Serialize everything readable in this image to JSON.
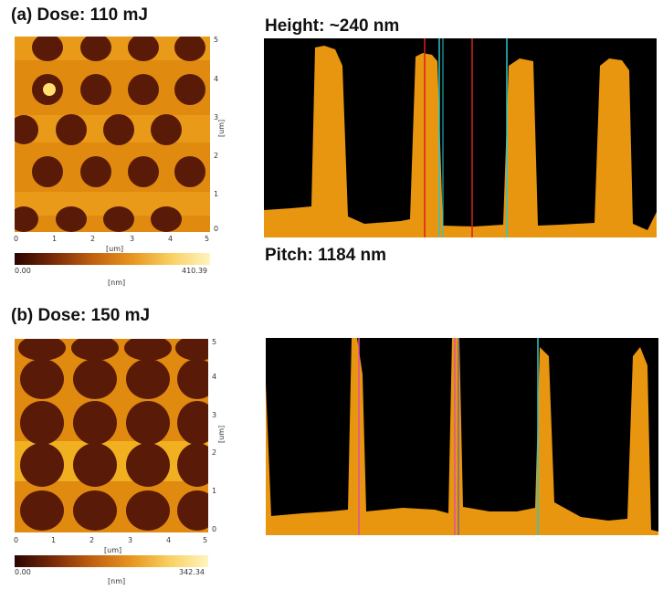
{
  "panel_a": {
    "title": "(a) Dose: 110 mJ",
    "x_ticks": [
      "0",
      "1",
      "2",
      "3",
      "4",
      "5"
    ],
    "y_ticks": [
      "0",
      "1",
      "2",
      "3",
      "4",
      "5"
    ],
    "x_unit": "[um]",
    "y_unit": "[um]",
    "colorbar_min": "0.00",
    "colorbar_max": "410.39",
    "colorbar_unit": "[nm]",
    "height_text": "Height: ~240 nm",
    "pitch_text": "Pitch: 1184 nm"
  },
  "panel_b": {
    "title": "(b) Dose: 150 mJ",
    "x_ticks": [
      "0",
      "1",
      "2",
      "3",
      "4",
      "5"
    ],
    "y_ticks": [
      "0",
      "1",
      "2",
      "3",
      "4",
      "5"
    ],
    "x_unit": "[um]",
    "y_unit": "[um]",
    "colorbar_min": "0.00",
    "colorbar_max": "342.34",
    "colorbar_unit": "[nm]"
  },
  "colors": {
    "surface": "#e8950f",
    "hole": "#5a1a08",
    "profile_fill": "#e8950f",
    "profile_bg": "#000000",
    "marker_red": "#d8201a",
    "marker_cyan": "#28c8d0",
    "marker_pink": "#e050a0"
  }
}
